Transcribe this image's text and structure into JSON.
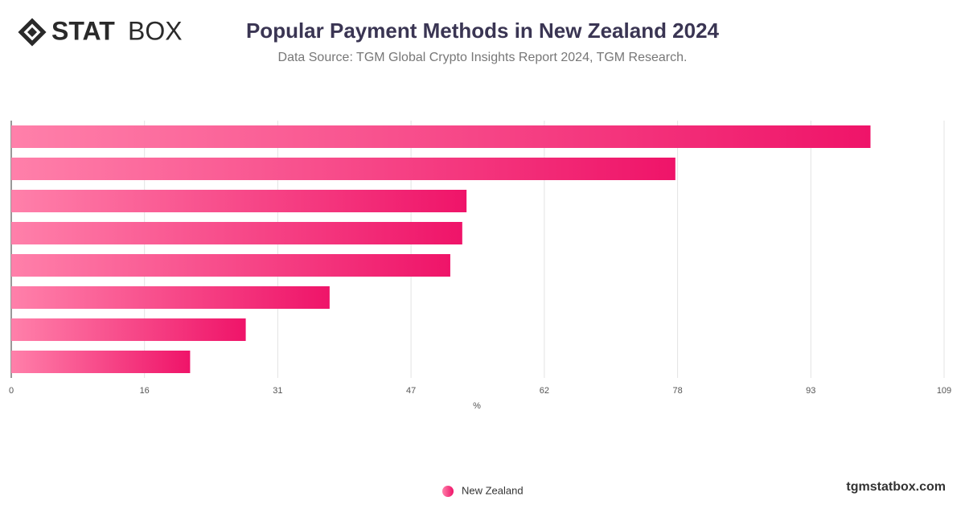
{
  "brand": {
    "logo_bold": "STAT",
    "logo_light": "BOX",
    "site": "tgmstatbox.com"
  },
  "chart_data": {
    "type": "hbar",
    "title": "Popular Payment Methods in New Zealand 2024",
    "subtitle": "Data Source: TGM Global Crypto Insights Report 2024, TGM Research.",
    "x_label": "%",
    "categories": [
      null,
      null,
      null,
      null,
      null,
      null,
      null,
      null
    ],
    "series": [
      {
        "name": "New Zealand",
        "color": "#ef1469",
        "values": [
          100.4,
          77.6,
          53.2,
          52.7,
          51.3,
          37.2,
          27.4,
          20.9
        ]
      }
    ],
    "xlim": [
      0,
      109
    ],
    "xticks": [
      0,
      {
        "value": 15.57,
        "label": "16"
      },
      {
        "value": 31.14,
        "label": "31"
      },
      {
        "value": 46.71,
        "label": "47"
      },
      {
        "value": 62.29,
        "label": "62"
      },
      {
        "value": 77.86,
        "label": "78"
      },
      {
        "value": 93.43,
        "label": "93"
      },
      109
    ],
    "grid": true
  }
}
